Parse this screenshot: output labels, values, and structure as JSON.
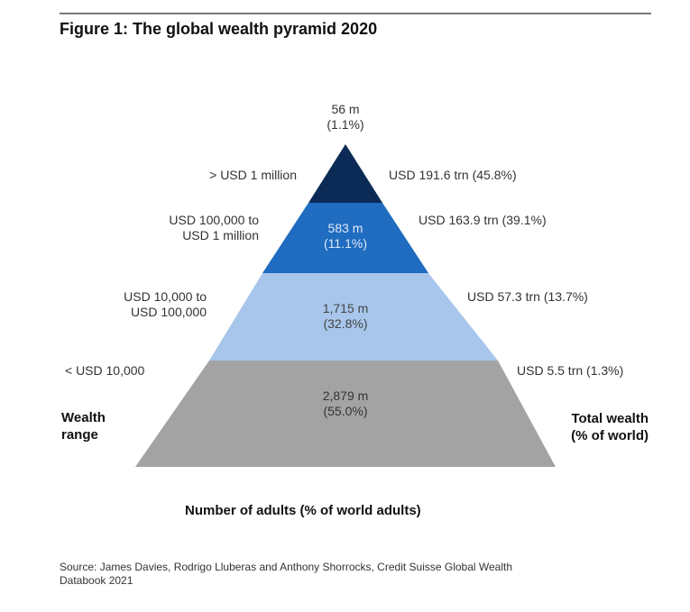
{
  "title": "Figure 1: The global wealth pyramid 2020",
  "tiers": [
    {
      "range": "> USD 1 million",
      "adults": "56 m",
      "adults_pct": "(1.1%)",
      "wealth": "USD 191.6 trn (45.8%)",
      "color": "#0b2a55"
    },
    {
      "range_line1": "USD 100,000 to",
      "range_line2": "USD 1 million",
      "adults": "583 m",
      "adults_pct": "(11.1%)",
      "wealth": "USD 163.9 trn (39.1%)",
      "color": "#1f6cc0"
    },
    {
      "range_line1": "USD 10,000 to",
      "range_line2": "USD 100,000",
      "adults": "1,715 m",
      "adults_pct": "(32.8%)",
      "wealth": "USD 57.3 trn (13.7%)",
      "color": "#a8c6eb"
    },
    {
      "range": "< USD 10,000",
      "adults": "2,879 m",
      "adults_pct": "(55.0%)",
      "wealth": "USD 5.5 trn (1.3%)",
      "color": "#a3a3a3"
    }
  ],
  "left_axis_line1": "Wealth",
  "left_axis_line2": "range",
  "right_axis_line1": "Total wealth",
  "right_axis_line2": "(% of world)",
  "bottom_axis": "Number of adults (% of world adults)",
  "source_line1": "Source: James Davies, Rodrigo Lluberas and Anthony Shorrocks, Credit Suisse Global Wealth",
  "source_line2": "Databook 2021"
}
